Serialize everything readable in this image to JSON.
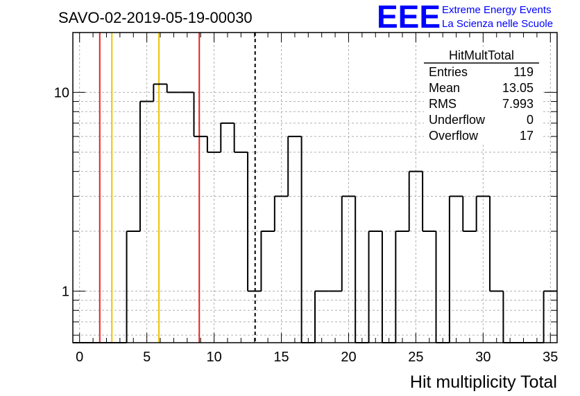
{
  "run_label": "SAVO-02-2019-05-19-00030",
  "logo": {
    "mark": "EEE",
    "line1": "Extreme Energy Events",
    "line2": "La Scienza nelle Scuole",
    "color": "#0000ff"
  },
  "stats": {
    "title": "HitMultTotal",
    "rows": [
      {
        "label": "Entries",
        "value": "119"
      },
      {
        "label": "Mean",
        "value": "13.05"
      },
      {
        "label": "RMS",
        "value": "7.993"
      },
      {
        "label": "Underflow",
        "value": "0"
      },
      {
        "label": "Overflow",
        "value": "17"
      }
    ]
  },
  "chart_data": {
    "type": "bar",
    "subtype": "histogram-step",
    "xlabel": "Hit multiplicity Total",
    "ylabel": "",
    "xlim": [
      -0.5,
      35.5
    ],
    "ylim": [
      0.55,
      20
    ],
    "yscale": "log",
    "bin_width": 1,
    "bin_centers": [
      0,
      1,
      2,
      3,
      4,
      5,
      6,
      7,
      8,
      9,
      10,
      11,
      12,
      13,
      14,
      15,
      16,
      17,
      18,
      19,
      20,
      21,
      22,
      23,
      24,
      25,
      26,
      27,
      28,
      29,
      30,
      31,
      32,
      33,
      34,
      35
    ],
    "values": [
      0,
      0,
      0,
      0,
      2,
      9,
      11,
      10,
      10,
      6,
      5,
      7,
      5,
      1,
      2,
      3,
      6,
      0,
      1,
      1,
      3,
      0,
      2,
      0,
      2,
      4,
      2,
      0,
      3,
      2,
      3,
      1,
      0,
      0,
      0,
      1
    ],
    "x_ticks": [
      0,
      5,
      10,
      15,
      20,
      25,
      30,
      35
    ],
    "x_tick_labels": [
      "0",
      "5",
      "10",
      "15",
      "20",
      "25",
      "30",
      "35"
    ],
    "y_ticks": [
      1,
      10
    ],
    "y_tick_labels": [
      "1",
      "10"
    ],
    "grid": true,
    "vertical_lines": [
      {
        "x": 1.5,
        "color": "#e8201d",
        "style": "solid"
      },
      {
        "x": 2.4,
        "color": "#f0c200",
        "style": "solid"
      },
      {
        "x": 5.9,
        "color": "#f0c200",
        "style": "solid"
      },
      {
        "x": 8.9,
        "color": "#e8201d",
        "style": "solid"
      },
      {
        "x": 13.05,
        "color": "#000000",
        "style": "dashed"
      }
    ],
    "line_color": "#000000"
  }
}
